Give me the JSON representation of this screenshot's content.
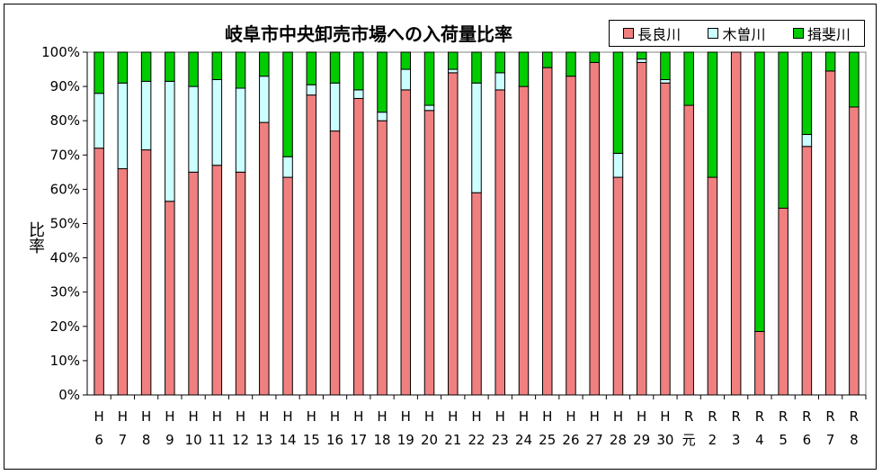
{
  "chart_data": {
    "type": "bar",
    "stacked": true,
    "title": "岐阜市中央卸売市場への入荷量比率",
    "ylabel": "比率",
    "xlabel": "",
    "ylim": [
      0,
      100
    ],
    "y_ticks": [
      "0%",
      "10%",
      "20%",
      "30%",
      "40%",
      "50%",
      "60%",
      "70%",
      "80%",
      "90%",
      "100%"
    ],
    "grid": false,
    "legend_position": "top-right",
    "categories": [
      [
        "H",
        "6"
      ],
      [
        "H",
        "7"
      ],
      [
        "H",
        "8"
      ],
      [
        "H",
        "9"
      ],
      [
        "H",
        "10"
      ],
      [
        "H",
        "11"
      ],
      [
        "H",
        "12"
      ],
      [
        "H",
        "13"
      ],
      [
        "H",
        "14"
      ],
      [
        "H",
        "15"
      ],
      [
        "H",
        "16"
      ],
      [
        "H",
        "17"
      ],
      [
        "H",
        "18"
      ],
      [
        "H",
        "19"
      ],
      [
        "H",
        "20"
      ],
      [
        "H",
        "21"
      ],
      [
        "H",
        "22"
      ],
      [
        "H",
        "23"
      ],
      [
        "H",
        "24"
      ],
      [
        "H",
        "25"
      ],
      [
        "H",
        "26"
      ],
      [
        "H",
        "27"
      ],
      [
        "H",
        "28"
      ],
      [
        "H",
        "29"
      ],
      [
        "H",
        "30"
      ],
      [
        "R",
        "元"
      ],
      [
        "R",
        "2"
      ],
      [
        "R",
        "3"
      ],
      [
        "R",
        "4"
      ],
      [
        "R",
        "5"
      ],
      [
        "R",
        "6"
      ],
      [
        "R",
        "7"
      ],
      [
        "R",
        "8"
      ]
    ],
    "series": [
      {
        "name": "長良川",
        "color": "#f08080",
        "values": [
          72,
          66,
          71.5,
          56.5,
          65,
          67,
          65,
          79.5,
          63.5,
          87.5,
          77,
          86.5,
          80,
          89,
          83,
          94,
          59,
          89,
          90,
          95.5,
          93,
          97,
          63.5,
          97,
          91,
          84.5,
          63.5,
          100,
          18.5,
          54.5,
          72.5,
          94.5,
          84
        ]
      },
      {
        "name": "木曽川",
        "color": "#ccffff",
        "values": [
          16,
          25,
          20,
          35,
          25,
          25,
          24.5,
          13.5,
          6,
          3,
          14,
          2.5,
          2.5,
          6,
          1.5,
          1,
          32,
          5,
          0,
          0,
          0,
          0,
          7,
          1,
          1,
          0,
          0,
          0,
          0,
          0,
          3.5,
          0,
          0
        ]
      },
      {
        "name": "揖斐川",
        "color": "#00cc00",
        "values": [
          12,
          9,
          8.5,
          8.5,
          10,
          8,
          10.5,
          7,
          30.5,
          9.5,
          9,
          11,
          17.5,
          5,
          15.5,
          5,
          9,
          6,
          10,
          4.5,
          7,
          3,
          29.5,
          2,
          8,
          15.5,
          36.5,
          0,
          81.5,
          45.5,
          24,
          5.5,
          16
        ]
      }
    ]
  }
}
